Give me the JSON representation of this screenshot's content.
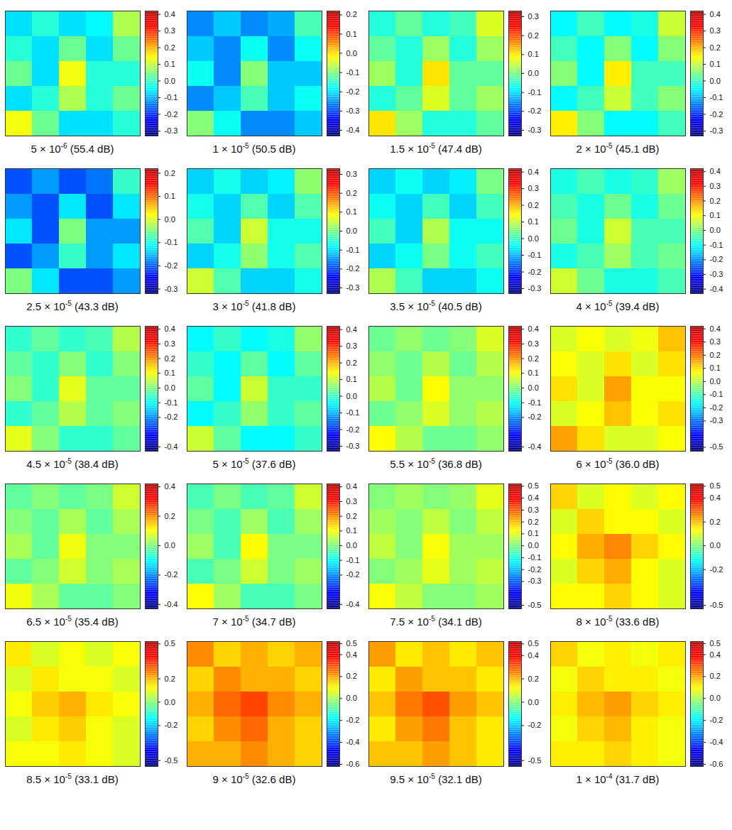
{
  "chart_data": [
    {
      "type": "heatmap",
      "caption": {
        "base": "5 × 10",
        "exponent": "-6",
        "rest": " (55.4 dB)"
      },
      "colorbar": {
        "range": [
          -0.33,
          0.42
        ],
        "ticks": [
          -0.3,
          -0.2,
          -0.1,
          {
            "value": 0,
            "label": "0.0"
          },
          0.1,
          0.2,
          0.3,
          0.4
        ]
      },
      "cells": [
        [
          -0.07,
          -0.02,
          -0.07,
          -0.05,
          0.08
        ],
        [
          -0.02,
          -0.07,
          0.03,
          -0.07,
          0.03
        ],
        [
          0.03,
          -0.07,
          0.13,
          -0.02,
          -0.02
        ],
        [
          -0.07,
          -0.02,
          0.08,
          -0.02,
          0.03
        ],
        [
          0.13,
          0.03,
          -0.07,
          -0.07,
          -0.02
        ]
      ]
    },
    {
      "type": "heatmap",
      "caption": {
        "base": "1 × 10",
        "exponent": "-5",
        "rest": " (50.5 dB)"
      },
      "colorbar": {
        "range": [
          -0.43,
          0.22
        ],
        "ticks": [
          -0.4,
          -0.3,
          -0.2,
          -0.1,
          {
            "value": 0,
            "label": "0.0"
          },
          0.1,
          0.2
        ]
      },
      "cells": [
        [
          -0.26,
          -0.22,
          -0.26,
          -0.24,
          -0.14
        ],
        [
          -0.22,
          -0.26,
          -0.18,
          -0.26,
          -0.18
        ],
        [
          -0.18,
          -0.26,
          -0.1,
          -0.22,
          -0.22
        ],
        [
          -0.26,
          -0.22,
          -0.14,
          -0.22,
          -0.18
        ],
        [
          -0.1,
          -0.18,
          -0.26,
          -0.26,
          -0.22
        ]
      ]
    },
    {
      "type": "heatmap",
      "caption": {
        "base": "1.5 × 10",
        "exponent": "-5",
        "rest": " (47.4 dB)"
      },
      "colorbar": {
        "range": [
          -0.33,
          0.33
        ],
        "ticks": [
          -0.3,
          -0.2,
          -0.1,
          {
            "value": 0,
            "label": "0.0"
          },
          0.1,
          0.2,
          0.3
        ]
      },
      "cells": [
        [
          -0.06,
          -0.02,
          -0.06,
          -0.04,
          0.06
        ],
        [
          -0.02,
          -0.06,
          0.02,
          -0.06,
          0.02
        ],
        [
          0.02,
          -0.06,
          0.1,
          -0.02,
          -0.02
        ],
        [
          -0.06,
          -0.02,
          0.06,
          -0.02,
          0.02
        ],
        [
          0.1,
          0.02,
          -0.06,
          -0.06,
          -0.02
        ]
      ]
    },
    {
      "type": "heatmap",
      "caption": {
        "base": "2 × 10",
        "exponent": "-5",
        "rest": " (45.1 dB)"
      },
      "colorbar": {
        "range": [
          -0.33,
          0.42
        ],
        "ticks": [
          -0.3,
          -0.2,
          -0.1,
          {
            "value": 0,
            "label": "0.0"
          },
          0.1,
          0.2,
          0.3,
          0.4
        ]
      },
      "cells": [
        [
          -0.05,
          0,
          -0.05,
          -0.03,
          0.1
        ],
        [
          0,
          -0.05,
          0.05,
          -0.05,
          0.05
        ],
        [
          0.05,
          -0.05,
          0.15,
          0,
          0
        ],
        [
          -0.05,
          0,
          0.1,
          0,
          0.05
        ],
        [
          0.15,
          0.05,
          -0.05,
          -0.05,
          0
        ]
      ]
    },
    {
      "type": "heatmap",
      "caption": {
        "base": "2.5 × 10",
        "exponent": "-5",
        "rest": " (43.3 dB)"
      },
      "colorbar": {
        "range": [
          -0.32,
          0.22
        ],
        "ticks": [
          -0.3,
          -0.2,
          -0.1,
          {
            "value": 0,
            "label": "0.0"
          },
          0.1,
          0.2
        ]
      },
      "cells": [
        [
          -0.21,
          -0.17,
          -0.21,
          -0.19,
          -0.09
        ],
        [
          -0.17,
          -0.21,
          -0.13,
          -0.21,
          -0.13
        ],
        [
          -0.13,
          -0.21,
          -0.05,
          -0.17,
          -0.17
        ],
        [
          -0.21,
          -0.17,
          -0.09,
          -0.17,
          -0.13
        ],
        [
          -0.05,
          -0.13,
          -0.21,
          -0.21,
          -0.17
        ]
      ]
    },
    {
      "type": "heatmap",
      "caption": {
        "base": "3 × 10",
        "exponent": "-5",
        "rest": " (41.8 dB)"
      },
      "colorbar": {
        "range": [
          -0.33,
          0.33
        ],
        "ticks": [
          -0.3,
          -0.2,
          -0.1,
          {
            "value": 0,
            "label": "0.0"
          },
          0.1,
          0.2,
          0.3
        ]
      },
      "cells": [
        [
          -0.11,
          -0.07,
          -0.11,
          -0.09,
          0.01
        ],
        [
          -0.07,
          -0.11,
          -0.03,
          -0.11,
          -0.03
        ],
        [
          -0.03,
          -0.11,
          0.05,
          -0.07,
          -0.07
        ],
        [
          -0.11,
          -0.07,
          0.01,
          -0.07,
          -0.03
        ],
        [
          0.05,
          -0.03,
          -0.11,
          -0.11,
          -0.07
        ]
      ]
    },
    {
      "type": "heatmap",
      "caption": {
        "base": "3.5 × 10",
        "exponent": "-5",
        "rest": " (40.5 dB)"
      },
      "colorbar": {
        "range": [
          -0.33,
          0.42
        ],
        "ticks": [
          -0.3,
          -0.2,
          -0.1,
          {
            "value": 0,
            "label": "0.0"
          },
          0.1,
          0.2,
          0.3,
          0.4
        ]
      },
      "cells": [
        [
          -0.08,
          -0.04,
          -0.08,
          -0.06,
          0.04
        ],
        [
          -0.04,
          -0.08,
          0,
          -0.08,
          0
        ],
        [
          0,
          -0.08,
          0.08,
          -0.04,
          -0.04
        ],
        [
          -0.08,
          -0.04,
          0.04,
          -0.04,
          0
        ],
        [
          0.08,
          0,
          -0.08,
          -0.08,
          -0.04
        ]
      ]
    },
    {
      "type": "heatmap",
      "caption": {
        "base": "4 × 10",
        "exponent": "-5",
        "rest": " (39.4 dB)"
      },
      "colorbar": {
        "range": [
          -0.43,
          0.42
        ],
        "ticks": [
          -0.4,
          -0.3,
          -0.2,
          -0.1,
          {
            "value": 0,
            "label": "0.0"
          },
          0.1,
          0.2,
          0.3,
          0.4
        ]
      },
      "cells": [
        [
          -0.09,
          -0.05,
          -0.09,
          -0.07,
          0.02
        ],
        [
          -0.05,
          -0.09,
          -0.02,
          -0.09,
          -0.02
        ],
        [
          -0.02,
          -0.09,
          0.06,
          -0.05,
          -0.05
        ],
        [
          -0.09,
          -0.05,
          0.02,
          -0.05,
          -0.02
        ],
        [
          0.06,
          -0.02,
          -0.09,
          -0.09,
          -0.05
        ]
      ]
    },
    {
      "type": "heatmap",
      "caption": {
        "base": "4.5 × 10",
        "exponent": "-5",
        "rest": " (38.4 dB)"
      },
      "colorbar": {
        "range": [
          -0.43,
          0.42
        ],
        "ticks": [
          -0.4,
          -0.2,
          -0.1,
          {
            "value": 0,
            "label": "0.0"
          },
          0.1,
          0.2,
          0.3,
          0.4
        ]
      },
      "cells": [
        [
          -0.07,
          -0.03,
          -0.07,
          -0.05,
          0.04
        ],
        [
          -0.03,
          -0.07,
          0,
          -0.07,
          0
        ],
        [
          0,
          -0.07,
          0.08,
          -0.03,
          -0.03
        ],
        [
          -0.07,
          -0.03,
          0.04,
          -0.03,
          0
        ],
        [
          0.08,
          0,
          -0.07,
          -0.07,
          -0.03
        ]
      ]
    },
    {
      "type": "heatmap",
      "caption": {
        "base": "5 × 10",
        "exponent": "-5",
        "rest": " (37.6 dB)"
      },
      "colorbar": {
        "range": [
          -0.33,
          0.42
        ],
        "ticks": [
          -0.3,
          -0.2,
          -0.1,
          {
            "value": 0,
            "label": "0.0"
          },
          0.1,
          0.2,
          0.3,
          0.4
        ]
      },
      "cells": [
        [
          -0.05,
          -0.01,
          -0.05,
          -0.03,
          0.06
        ],
        [
          -0.01,
          -0.05,
          0.02,
          -0.05,
          0.02
        ],
        [
          0.02,
          -0.05,
          0.1,
          -0.01,
          -0.01
        ],
        [
          -0.05,
          -0.01,
          0.06,
          -0.01,
          0.02
        ],
        [
          0.1,
          0.02,
          -0.05,
          -0.05,
          -0.01
        ]
      ]
    },
    {
      "type": "heatmap",
      "caption": {
        "base": "5.5 × 10",
        "exponent": "-5",
        "rest": " (36.8 dB)"
      },
      "colorbar": {
        "range": [
          -0.43,
          0.42
        ],
        "ticks": [
          -0.4,
          -0.2,
          -0.1,
          {
            "value": 0,
            "label": "0.0"
          },
          0.1,
          0.2,
          0.3,
          0.4
        ]
      },
      "cells": [
        [
          -0.02,
          0.01,
          -0.02,
          0,
          0.07
        ],
        [
          0.01,
          -0.02,
          0.04,
          -0.02,
          0.04
        ],
        [
          0.04,
          -0.02,
          0.1,
          0.01,
          0.01
        ],
        [
          -0.02,
          0.01,
          0.07,
          0.01,
          0.04
        ],
        [
          0.1,
          0.04,
          -0.02,
          -0.02,
          0.01
        ]
      ]
    },
    {
      "type": "heatmap",
      "caption": {
        "base": "6 × 10",
        "exponent": "-5",
        "rest": " (36.0 dB)"
      },
      "colorbar": {
        "range": [
          -0.53,
          0.42
        ],
        "ticks": [
          -0.5,
          -0.3,
          -0.2,
          -0.1,
          {
            "value": 0,
            "label": "0.0"
          },
          0.1,
          0.2,
          0.3,
          0.4
        ]
      },
      "cells": [
        [
          0.03,
          0.06,
          0.03,
          0.05,
          0.12
        ],
        [
          0.06,
          0.03,
          0.09,
          0.03,
          0.09
        ],
        [
          0.09,
          0.03,
          0.15,
          0.06,
          0.06
        ],
        [
          0.03,
          0.06,
          0.12,
          0.06,
          0.09
        ],
        [
          0.15,
          0.09,
          0.03,
          0.03,
          0.06
        ]
      ]
    },
    {
      "type": "heatmap",
      "caption": {
        "base": "6.5 × 10",
        "exponent": "-5",
        "rest": " (35.4 dB)"
      },
      "colorbar": {
        "range": [
          -0.43,
          0.42
        ],
        "ticks": [
          -0.4,
          -0.2,
          {
            "value": 0,
            "label": "0.0"
          },
          0.2,
          0.4
        ]
      },
      "cells": [
        [
          -0.03,
          0,
          -0.03,
          -0.01,
          0.06
        ],
        [
          0,
          -0.03,
          0.03,
          -0.03,
          0.03
        ],
        [
          0.03,
          -0.03,
          0.09,
          0,
          0
        ],
        [
          -0.03,
          0,
          0.06,
          0,
          0.03
        ],
        [
          0.09,
          0.03,
          -0.03,
          -0.03,
          0
        ]
      ]
    },
    {
      "type": "heatmap",
      "caption": {
        "base": "7 × 10",
        "exponent": "-5",
        "rest": " (34.7 dB)"
      },
      "colorbar": {
        "range": [
          -0.43,
          0.42
        ],
        "ticks": [
          -0.4,
          -0.2,
          -0.1,
          {
            "value": 0,
            "label": "0.0"
          },
          0.1,
          0.2,
          0.3,
          0.4
        ]
      },
      "cells": [
        [
          -0.05,
          -0.01,
          -0.05,
          -0.03,
          0.06
        ],
        [
          -0.01,
          -0.05,
          0.02,
          -0.05,
          0.02
        ],
        [
          0.02,
          -0.05,
          0.1,
          -0.01,
          -0.01
        ],
        [
          -0.05,
          -0.01,
          0.06,
          -0.01,
          0.02
        ],
        [
          0.1,
          0.02,
          -0.05,
          -0.05,
          -0.01
        ]
      ]
    },
    {
      "type": "heatmap",
      "caption": {
        "base": "7.5 × 10",
        "exponent": "-5",
        "rest": " (34.1 dB)"
      },
      "colorbar": {
        "range": [
          -0.53,
          0.52
        ],
        "ticks": [
          -0.5,
          -0.3,
          -0.2,
          -0.1,
          {
            "value": 0,
            "label": "0.0"
          },
          0.1,
          0.2,
          0.3,
          0.4,
          0.5
        ]
      },
      "cells": [
        [
          0,
          0.03,
          0,
          0.02,
          0.1
        ],
        [
          0.03,
          0,
          0.06,
          0,
          0.06
        ],
        [
          0.06,
          0,
          0.12,
          0.03,
          0.03
        ],
        [
          0,
          0.03,
          0.1,
          0.03,
          0.06
        ],
        [
          0.12,
          0.06,
          0,
          0,
          0.03
        ]
      ]
    },
    {
      "type": "heatmap",
      "caption": {
        "base": "8 × 10",
        "exponent": "-5",
        "rest": " (33.6 dB)"
      },
      "colorbar": {
        "range": [
          -0.53,
          0.52
        ],
        "ticks": [
          -0.5,
          -0.2,
          {
            "value": 0,
            "label": "0.0"
          },
          0.2,
          0.4,
          0.5
        ]
      },
      "cells": [
        [
          0.17,
          0.09,
          0.13,
          0.09,
          0.13
        ],
        [
          0.09,
          0.17,
          0.13,
          0.13,
          0.09
        ],
        [
          0.13,
          0.21,
          0.25,
          0.17,
          0.13
        ],
        [
          0.09,
          0.17,
          0.21,
          0.13,
          0.09
        ],
        [
          0.13,
          0.13,
          0.17,
          0.13,
          0.09
        ]
      ]
    },
    {
      "type": "heatmap",
      "caption": {
        "base": "8.5 × 10",
        "exponent": "-5",
        "rest": " (33.1 dB)"
      },
      "colorbar": {
        "range": [
          -0.55,
          0.52
        ],
        "ticks": [
          -0.5,
          -0.2,
          {
            "value": 0,
            "label": "0.0"
          },
          0.2,
          0.5
        ]
      },
      "cells": [
        [
          0.14,
          0.08,
          0.11,
          0.08,
          0.11
        ],
        [
          0.08,
          0.14,
          0.11,
          0.11,
          0.08
        ],
        [
          0.11,
          0.17,
          0.2,
          0.14,
          0.11
        ],
        [
          0.08,
          0.14,
          0.17,
          0.11,
          0.08
        ],
        [
          0.11,
          0.11,
          0.14,
          0.11,
          0.08
        ]
      ]
    },
    {
      "type": "heatmap",
      "caption": {
        "base": "9 × 10",
        "exponent": "-5",
        "rest": " (32.6 dB)"
      },
      "colorbar": {
        "range": [
          -0.62,
          0.52
        ],
        "ticks": [
          -0.6,
          -0.4,
          -0.2,
          {
            "value": 0,
            "label": "0.0"
          },
          0.2,
          0.4,
          0.5
        ]
      },
      "cells": [
        [
          0.22,
          0.14,
          0.18,
          0.14,
          0.18
        ],
        [
          0.14,
          0.22,
          0.18,
          0.18,
          0.14
        ],
        [
          0.18,
          0.26,
          0.3,
          0.22,
          0.18
        ],
        [
          0.14,
          0.22,
          0.26,
          0.18,
          0.14
        ],
        [
          0.18,
          0.18,
          0.22,
          0.18,
          0.14
        ]
      ]
    },
    {
      "type": "heatmap",
      "caption": {
        "base": "9.5 × 10",
        "exponent": "-5",
        "rest": " (32.1 dB)"
      },
      "colorbar": {
        "range": [
          -0.55,
          0.52
        ],
        "ticks": [
          -0.5,
          -0.2,
          {
            "value": 0,
            "label": "0.0"
          },
          0.2,
          0.4,
          0.5
        ]
      },
      "cells": [
        [
          0.22,
          0.14,
          0.18,
          0.14,
          0.18
        ],
        [
          0.14,
          0.22,
          0.18,
          0.18,
          0.14
        ],
        [
          0.18,
          0.26,
          0.3,
          0.22,
          0.18
        ],
        [
          0.14,
          0.22,
          0.26,
          0.18,
          0.14
        ],
        [
          0.18,
          0.18,
          0.22,
          0.18,
          0.14
        ]
      ]
    },
    {
      "type": "heatmap",
      "caption": {
        "base": "1 × 10",
        "exponent": "-4",
        "rest": " (31.7 dB)"
      },
      "colorbar": {
        "range": [
          -0.62,
          0.52
        ],
        "ticks": [
          -0.6,
          -0.4,
          -0.2,
          {
            "value": 0,
            "label": "0.0"
          },
          0.2,
          0.4,
          0.5
        ]
      },
      "cells": [
        [
          0.14,
          0.08,
          0.11,
          0.08,
          0.11
        ],
        [
          0.08,
          0.14,
          0.11,
          0.11,
          0.08
        ],
        [
          0.11,
          0.17,
          0.2,
          0.14,
          0.11
        ],
        [
          0.08,
          0.14,
          0.17,
          0.11,
          0.08
        ],
        [
          0.11,
          0.11,
          0.14,
          0.11,
          0.08
        ]
      ]
    }
  ]
}
